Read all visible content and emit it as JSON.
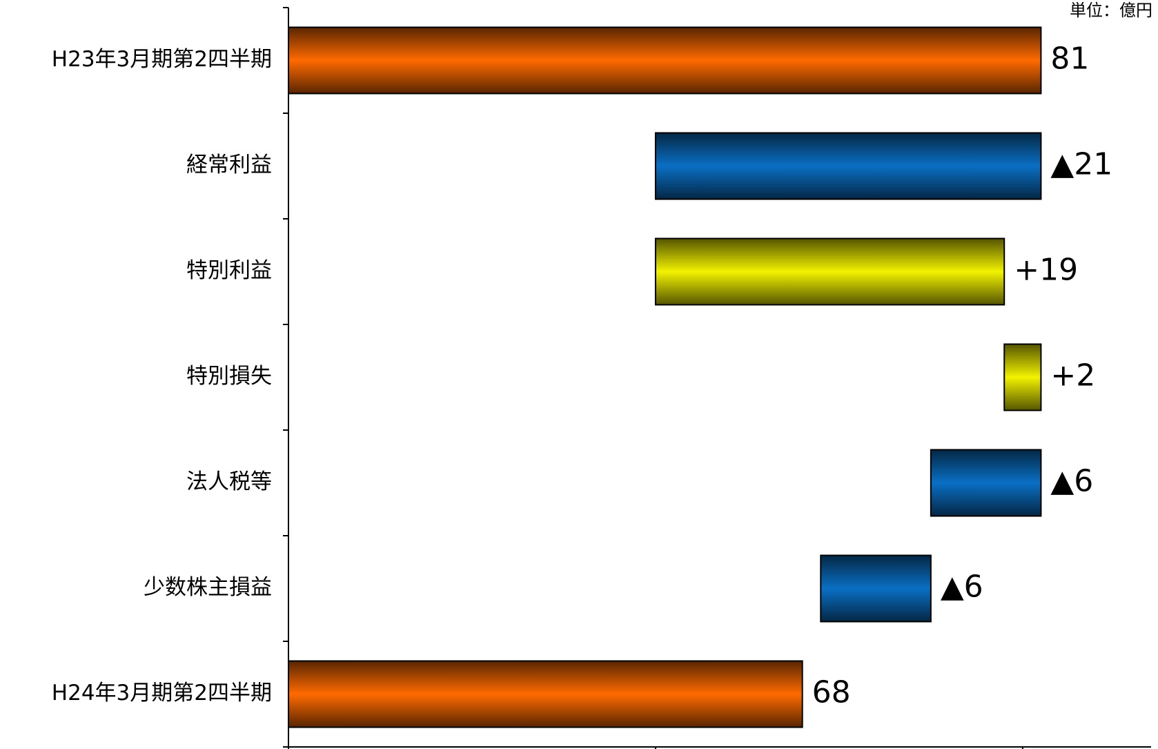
{
  "chart_data": {
    "type": "waterfall",
    "unit_label": "単位：億円",
    "categories": [
      "H23年3月期第2四半期",
      "経常利益",
      "特別利益",
      "特別損失",
      "法人税等",
      "少数株主損益",
      "H24年3月期第2四半期"
    ],
    "values": [
      81,
      -21,
      19,
      2,
      -6,
      -6,
      68
    ],
    "value_labels": [
      "81",
      "▲21",
      "+19",
      "+2",
      "▲6",
      "▲6",
      "68"
    ],
    "colors": [
      "#ff6a00",
      "#0a6fc4",
      "#f2f200",
      "#f2f200",
      "#0a6fc4",
      "#0a6fc4",
      "#ff6a00"
    ],
    "xlim": [
      40,
      87
    ],
    "xticks": [
      40,
      60,
      80
    ]
  }
}
